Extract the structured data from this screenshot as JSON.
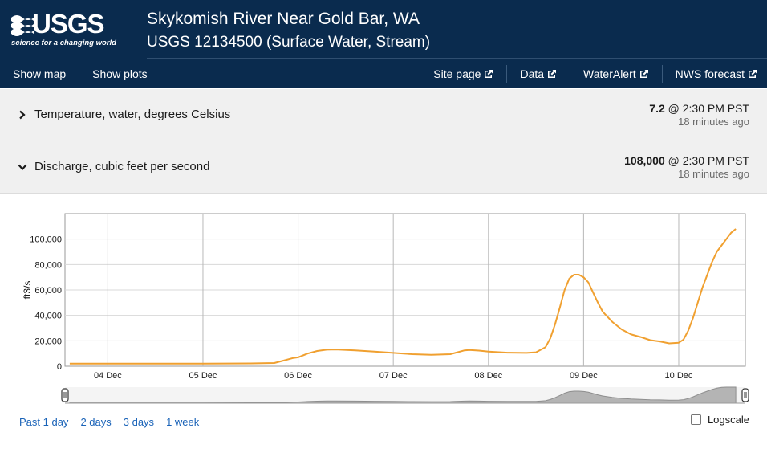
{
  "header": {
    "logo_text": "USGS",
    "logo_tagline": "science for a changing world",
    "title": "Skykomish River Near Gold Bar, WA",
    "subtitle": "USGS 12134500 (Surface Water, Stream)",
    "nav_left": [
      "Show map",
      "Show plots"
    ],
    "nav_right": [
      "Site page",
      "Data",
      "WaterAlert",
      "NWS forecast"
    ]
  },
  "parameters": [
    {
      "label": "Temperature, water, degrees Celsius",
      "value": "7.2",
      "time": "@ 2:30 PM PST",
      "ago": "18 minutes ago",
      "expanded": false
    },
    {
      "label": "Discharge, cubic feet per second",
      "value": "108,000",
      "time": "@ 2:30 PM PST",
      "ago": "18 minutes ago",
      "expanded": true
    }
  ],
  "chart_data": {
    "type": "line",
    "ylabel": "ft3/s",
    "xlabel": "",
    "ylim": [
      0,
      120000
    ],
    "yticks": [
      "0",
      "20,000",
      "40,000",
      "60,000",
      "80,000",
      "100,000"
    ],
    "ytick_values": [
      0,
      20000,
      40000,
      60000,
      80000,
      100000
    ],
    "xticks": [
      "04 Dec",
      "05 Dec",
      "06 Dec",
      "07 Dec",
      "08 Dec",
      "09 Dec",
      "10 Dec"
    ],
    "x_range_days": [
      3.55,
      10.7
    ],
    "grid": true,
    "line_color": "#f0a030",
    "series": [
      {
        "x": [
          3.6,
          4.0,
          4.5,
          5.0,
          5.5,
          5.75,
          5.85,
          5.95,
          6.0,
          6.1,
          6.2,
          6.3,
          6.4,
          6.6,
          6.8,
          7.0,
          7.2,
          7.4,
          7.6,
          7.65,
          7.75,
          7.8,
          7.9,
          8.0,
          8.2,
          8.4,
          8.5,
          8.6,
          8.65,
          8.7,
          8.75,
          8.8,
          8.85,
          8.9,
          8.95,
          9.0,
          9.05,
          9.1,
          9.15,
          9.2,
          9.3,
          9.4,
          9.5,
          9.6,
          9.7,
          9.8,
          9.9,
          10.0,
          10.05,
          10.1,
          10.15,
          10.2,
          10.25,
          10.3,
          10.35,
          10.4,
          10.45,
          10.5,
          10.55,
          10.6
        ],
        "y": [
          2000,
          2000,
          2000,
          2100,
          2200,
          2500,
          4500,
          6500,
          7000,
          10000,
          12000,
          13000,
          13200,
          12500,
          11500,
          10500,
          9500,
          9000,
          9500,
          10500,
          12500,
          12800,
          12300,
          11500,
          10700,
          10500,
          11000,
          15000,
          22000,
          33000,
          46000,
          60000,
          69000,
          72000,
          72000,
          70000,
          66000,
          58000,
          50000,
          43000,
          35000,
          29000,
          25000,
          23000,
          20500,
          19500,
          18000,
          18500,
          21000,
          28000,
          38000,
          50000,
          62000,
          72000,
          82000,
          90000,
          95000,
          100000,
          105000,
          108000
        ]
      }
    ],
    "brush_handles": 2
  },
  "ranges": [
    "Past 1 day",
    "2 days",
    "3 days",
    "1 week"
  ],
  "logscale_label": "Logscale"
}
